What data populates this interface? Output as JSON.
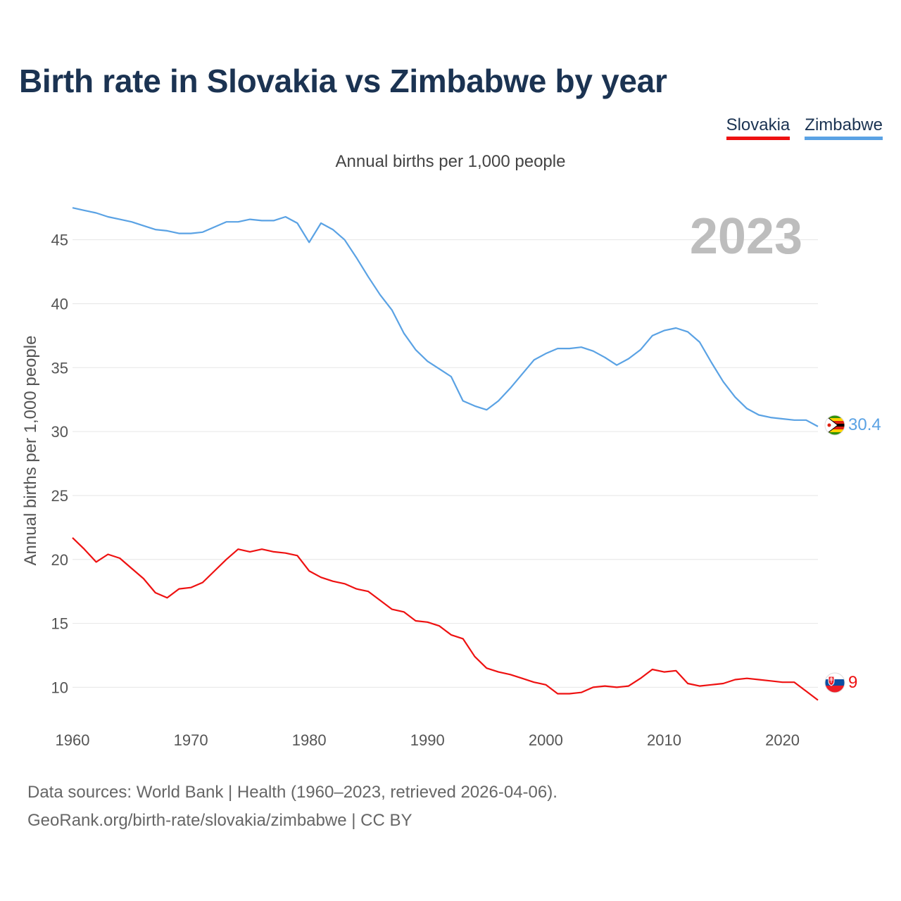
{
  "title": "Birth rate in Slovakia vs Zimbabwe by year",
  "legend": [
    {
      "label": "Slovakia",
      "color": "#ee1111"
    },
    {
      "label": "Zimbabwe",
      "color": "#5aa2e4"
    }
  ],
  "subtitle": "Annual births per 1,000 people",
  "source": {
    "line1": "Data sources: World Bank | Health (1960–2023, retrieved 2026-04-06).",
    "line2": "GeoRank.org/birth-rate/slovakia/zimbabwe | CC BY"
  },
  "chart_data": {
    "type": "line",
    "title": "Birth rate in Slovakia vs Zimbabwe by year",
    "ylabel": "Annual births per 1,000 people",
    "xlabel": "",
    "year_label": "2023",
    "xlim": [
      1960,
      2023
    ],
    "ylim": [
      6.5,
      49
    ],
    "yticks": [
      10,
      15,
      20,
      25,
      30,
      35,
      40,
      45
    ],
    "xticks": [
      1960,
      1970,
      1980,
      1990,
      2000,
      2010,
      2020
    ],
    "grid": true,
    "legend_position": "top-right",
    "x": [
      1960,
      1961,
      1962,
      1963,
      1964,
      1965,
      1966,
      1967,
      1968,
      1969,
      1970,
      1971,
      1972,
      1973,
      1974,
      1975,
      1976,
      1977,
      1978,
      1979,
      1980,
      1981,
      1982,
      1983,
      1984,
      1985,
      1986,
      1987,
      1988,
      1989,
      1990,
      1991,
      1992,
      1993,
      1994,
      1995,
      1996,
      1997,
      1998,
      1999,
      2000,
      2001,
      2002,
      2003,
      2004,
      2005,
      2006,
      2007,
      2008,
      2009,
      2010,
      2011,
      2012,
      2013,
      2014,
      2015,
      2016,
      2017,
      2018,
      2019,
      2020,
      2021,
      2022,
      2023
    ],
    "series": [
      {
        "name": "Zimbabwe",
        "color": "#5aa2e4",
        "end_label": "30.4",
        "values": [
          47.5,
          47.3,
          47.1,
          46.8,
          46.6,
          46.4,
          46.1,
          45.8,
          45.7,
          45.5,
          45.5,
          45.6,
          46.0,
          46.4,
          46.4,
          46.6,
          46.5,
          46.5,
          46.8,
          46.3,
          44.8,
          46.3,
          45.8,
          45.0,
          43.6,
          42.1,
          40.7,
          39.5,
          37.7,
          36.4,
          35.5,
          34.9,
          34.3,
          32.4,
          32.0,
          31.7,
          32.4,
          33.4,
          34.5,
          35.6,
          36.1,
          36.5,
          36.5,
          36.6,
          36.3,
          35.8,
          35.2,
          35.7,
          36.4,
          37.5,
          37.9,
          38.1,
          37.8,
          37.0,
          35.4,
          33.9,
          32.7,
          31.8,
          31.3,
          31.1,
          31.0,
          30.9,
          30.9,
          30.4
        ]
      },
      {
        "name": "Slovakia",
        "color": "#ee1111",
        "end_label": "9",
        "values": [
          21.7,
          20.8,
          19.8,
          20.4,
          20.1,
          19.3,
          18.5,
          17.4,
          17.0,
          17.7,
          17.8,
          18.2,
          19.1,
          20.0,
          20.8,
          20.6,
          20.8,
          20.6,
          20.5,
          20.3,
          19.1,
          18.6,
          18.3,
          18.1,
          17.7,
          17.5,
          16.8,
          16.1,
          15.9,
          15.2,
          15.1,
          14.8,
          14.1,
          13.8,
          12.4,
          11.5,
          11.2,
          11.0,
          10.7,
          10.4,
          10.2,
          9.5,
          9.5,
          9.6,
          10.0,
          10.1,
          10.0,
          10.1,
          10.7,
          11.4,
          11.2,
          11.3,
          10.3,
          10.1,
          10.2,
          10.3,
          10.6,
          10.7,
          10.6,
          10.5,
          10.4,
          10.4,
          9.7,
          9.0
        ]
      }
    ]
  }
}
